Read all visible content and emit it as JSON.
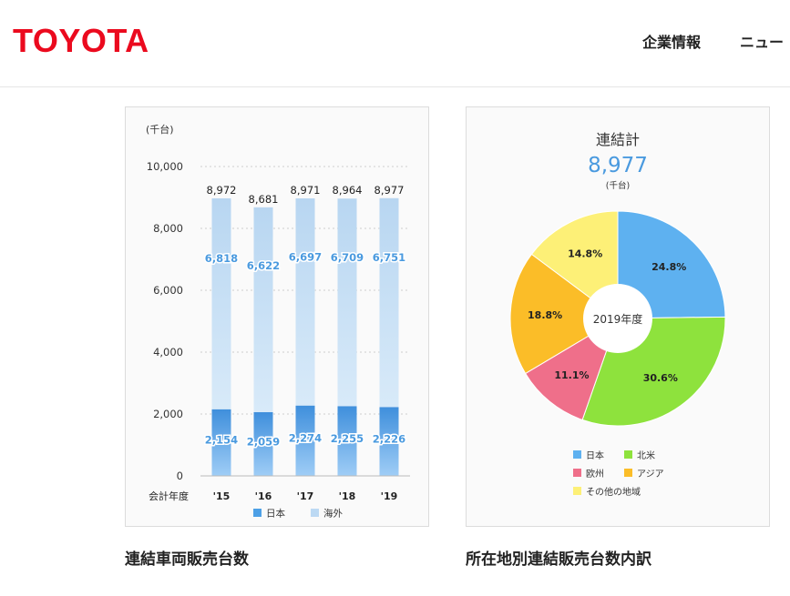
{
  "header": {
    "logo": "TOYOTA",
    "nav": [
      "企業情報",
      "ニュー"
    ]
  },
  "chart_data": [
    {
      "type": "bar",
      "stacked": true,
      "unit_label": "(千台)",
      "xlabel": "会計年度",
      "categories": [
        "'15",
        "'16",
        "'17",
        "'18",
        "'19"
      ],
      "series": [
        {
          "name": "日本",
          "values": [
            2154,
            2059,
            2274,
            2255,
            2226
          ],
          "color": "#4da0e6"
        },
        {
          "name": "海外",
          "values": [
            6818,
            6622,
            6697,
            6709,
            6751
          ],
          "color": "#bcd9f3"
        }
      ],
      "totals": [
        8972,
        8681,
        8971,
        8964,
        8977
      ],
      "value_labels": {
        "japan": [
          "2,154",
          "2,059",
          "2,274",
          "2,255",
          "2,226"
        ],
        "overseas": [
          "6,818",
          "6,622",
          "6,697",
          "6,709",
          "6,751"
        ],
        "totals": [
          "8,972",
          "8,681",
          "8,971",
          "8,964",
          "8,977"
        ]
      },
      "ylim": [
        0,
        10000
      ],
      "yticks": [
        0,
        2000,
        4000,
        6000,
        8000,
        10000
      ],
      "ytick_labels": [
        "0",
        "2,000",
        "4,000",
        "6,000",
        "8,000",
        "10,000"
      ],
      "grid": "dotted horizontal",
      "legend": [
        "日本",
        "海外"
      ],
      "legend_position": "bottom",
      "caption": "連結車両販売台数"
    },
    {
      "type": "pie",
      "donut": true,
      "title": "連結計",
      "total": "8,977",
      "unit_label": "(千台)",
      "center_label": "2019年度",
      "slices": [
        {
          "name": "日本",
          "value": 24.8,
          "label": "24.8%",
          "color": "#5eb1f0"
        },
        {
          "name": "北米",
          "value": 30.6,
          "label": "30.6%",
          "color": "#8ee23d"
        },
        {
          "name": "欧州",
          "value": 11.1,
          "label": "11.1%",
          "color": "#ef6f8a"
        },
        {
          "name": "アジア",
          "value": 18.8,
          "label": "18.8%",
          "color": "#fbbd28"
        },
        {
          "name": "その他の地域",
          "value": 14.8,
          "label": "14.8%",
          "color": "#fdf077"
        }
      ],
      "legend": [
        "日本",
        "北米",
        "欧州",
        "アジア",
        "その他の地域"
      ],
      "legend_position": "bottom",
      "caption": "所在地別連結販売台数内訳"
    }
  ]
}
